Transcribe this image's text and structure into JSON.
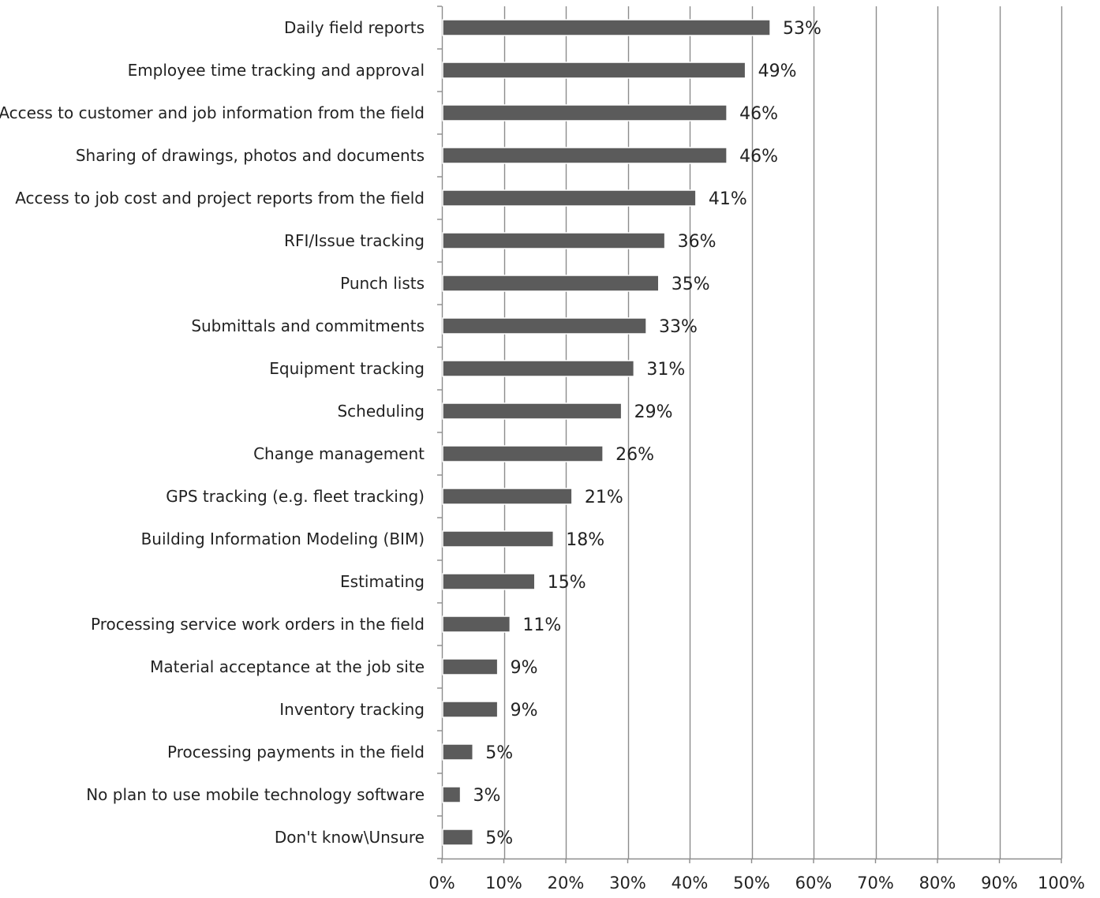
{
  "chart_data": {
    "type": "bar",
    "orientation": "horizontal",
    "title": "",
    "xlabel": "",
    "ylabel": "",
    "xlim": [
      0,
      100
    ],
    "grid": true,
    "legend": "none",
    "categories": [
      "Daily field reports",
      "Employee time tracking and approval",
      "Access to customer and job information from the field",
      "Sharing of drawings, photos and documents",
      "Access to job cost and project reports from the field",
      "RFI/Issue tracking",
      "Punch lists",
      "Submittals and commitments",
      "Equipment tracking",
      "Scheduling",
      "Change management",
      "GPS tracking (e.g. fleet tracking)",
      "Building Information Modeling (BIM)",
      "Estimating",
      "Processing service work orders in the field",
      "Material acceptance at the job site",
      "Inventory tracking",
      "Processing payments in the field",
      "No plan to use mobile technology software",
      "Don't know\\Unsure"
    ],
    "values": [
      53,
      49,
      46,
      46,
      41,
      36,
      35,
      33,
      31,
      29,
      26,
      21,
      18,
      15,
      11,
      9,
      9,
      5,
      3,
      5
    ],
    "data_labels": [
      "53%",
      "49%",
      "46%",
      "46%",
      "41%",
      "36%",
      "35%",
      "33%",
      "31%",
      "29%",
      "26%",
      "21%",
      "18%",
      "15%",
      "11%",
      "9%",
      "9%",
      "5%",
      "3%",
      "5%"
    ],
    "tick_values": [
      0,
      10,
      20,
      30,
      40,
      50,
      60,
      70,
      80,
      90,
      100
    ],
    "tick_labels": [
      "0%",
      "10%",
      "20%",
      "30%",
      "40%",
      "50%",
      "60%",
      "70%",
      "80%",
      "90%",
      "100%"
    ],
    "colors": {
      "bar": "#5b5b5b",
      "grid": "#8c8c8c",
      "axis": "#8c8c8c",
      "text": "#222222"
    }
  }
}
